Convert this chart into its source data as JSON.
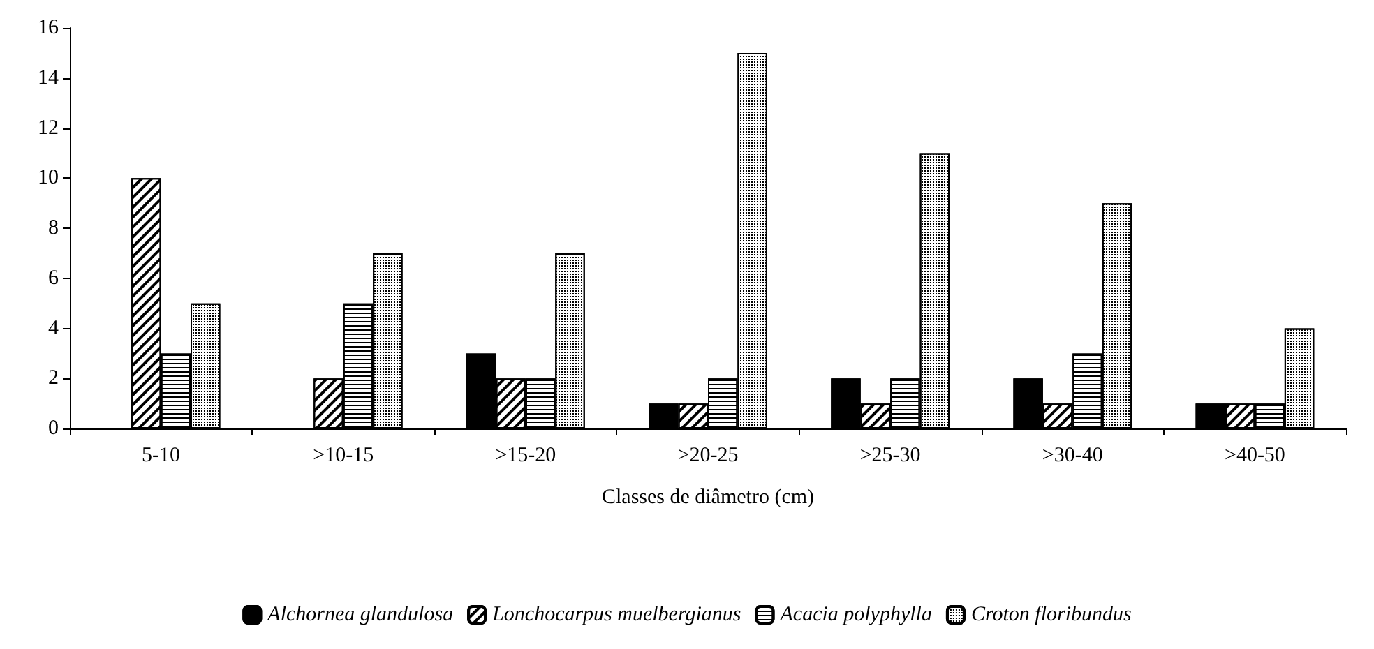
{
  "chart_data": {
    "type": "bar",
    "xlabel": "Classes de diâmetro (cm)",
    "categories": [
      "5-10",
      ">10-15",
      ">15-20",
      ">20-25",
      ">25-30",
      ">30-40",
      ">40-50"
    ],
    "series": [
      {
        "name": "Alchornea glandulosa",
        "color": "#000000",
        "values": [
          0,
          0,
          3,
          1,
          2,
          2,
          1
        ]
      },
      {
        "name": "Lonchocarpus muelbergianus",
        "color": "#ffffff",
        "values": [
          10,
          2,
          2,
          1,
          1,
          1,
          1
        ]
      },
      {
        "name": "Acacia polyphylla",
        "color": "#ffffff",
        "values": [
          3,
          5,
          2,
          2,
          2,
          3,
          1
        ]
      },
      {
        "name": "Croton floribundus",
        "color": "#ffffff",
        "values": [
          5,
          7,
          7,
          15,
          11,
          9,
          4
        ]
      }
    ],
    "ylim": [
      0,
      16
    ],
    "yticks": [
      0,
      2,
      4,
      6,
      8,
      10,
      12,
      14,
      16
    ],
    "grid": false,
    "legend": "bottom"
  }
}
